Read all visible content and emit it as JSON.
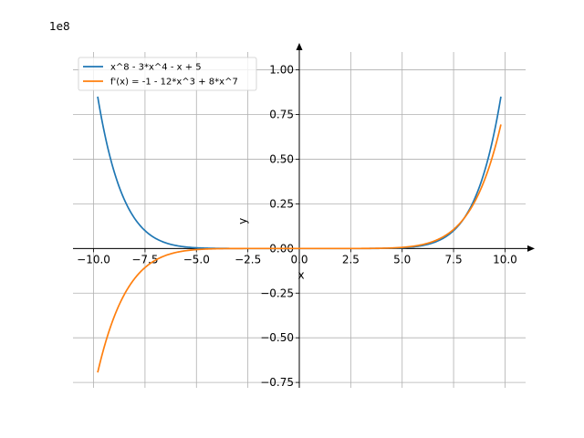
{
  "chart_data": {
    "type": "line",
    "title": "",
    "xlabel": "x",
    "ylabel": "y",
    "y_offset_label": "1e8",
    "xlim": [
      -11.0,
      11.0
    ],
    "ylim": [
      -0.78,
      1.1
    ],
    "x_ticks": [
      -10.0,
      -7.5,
      -5.0,
      -2.5,
      0.0,
      2.5,
      5.0,
      7.5,
      10.0
    ],
    "x_tick_labels": [
      "−10.0",
      "−7.5",
      "−5.0",
      "−2.5",
      "0.0",
      "2.5",
      "5.0",
      "7.5",
      "10.0"
    ],
    "y_ticks": [
      -0.75,
      -0.5,
      -0.25,
      0.0,
      0.25,
      0.5,
      0.75,
      1.0
    ],
    "y_tick_labels": [
      "−0.75",
      "−0.50",
      "−0.25",
      "0.00",
      "0.25",
      "0.50",
      "0.75",
      "1.00"
    ],
    "grid": true,
    "legend_position": "top-left",
    "x_range": [
      -9.8,
      9.8
    ],
    "series": [
      {
        "name": "x^8 - 3*x^4 - x + 5",
        "expression": "x^8 - 3*x^4 - x + 5",
        "color": "#1f77b4"
      },
      {
        "name": "f'(x) = -1 - 12*x^3 + 8*x^7",
        "expression": "-1 - 12*x^3 + 8*x^7",
        "color": "#ff7f0e"
      }
    ]
  }
}
